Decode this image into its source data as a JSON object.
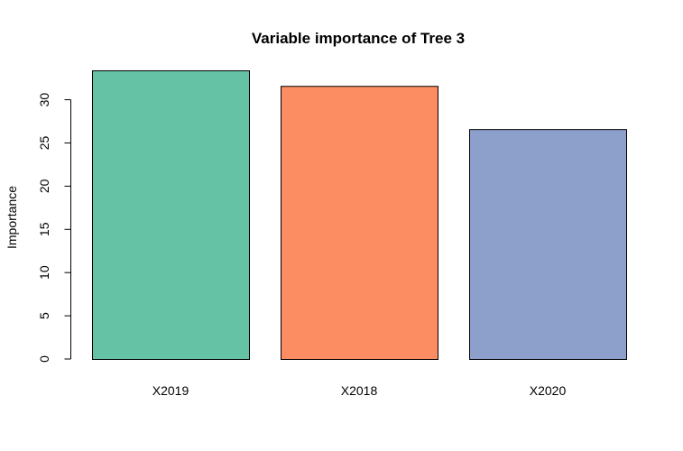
{
  "chart_data": {
    "type": "bar",
    "title": "Variable importance of Tree 3",
    "xlabel": "",
    "ylabel": "Importance",
    "categories": [
      "X2019",
      "X2018",
      "X2020"
    ],
    "values": [
      33.4,
      31.6,
      26.6
    ],
    "colors": [
      "#66C2A5",
      "#FC8D62",
      "#8DA0CB"
    ],
    "ylim": [
      0,
      33.4
    ],
    "yticks": [
      0,
      5,
      10,
      15,
      20,
      25,
      30
    ],
    "grid": false,
    "legend": "none"
  }
}
